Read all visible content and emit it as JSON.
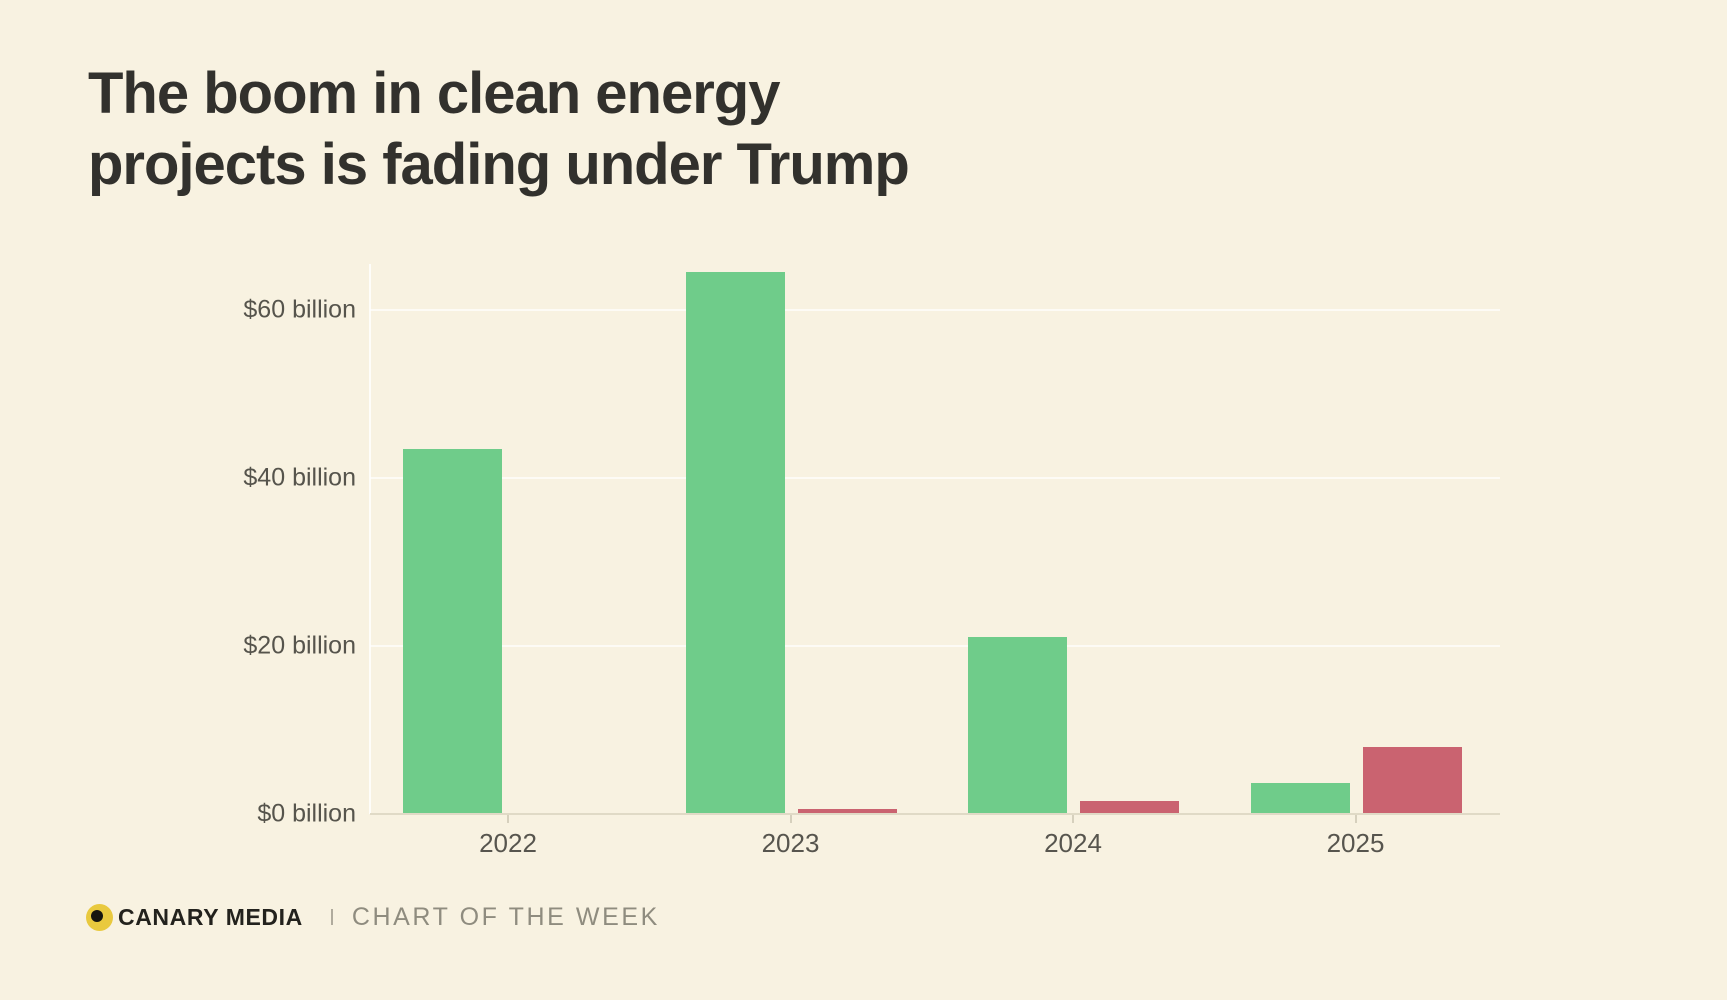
{
  "title": {
    "line1": "The boom in clean energy",
    "line2": "projects is fading under Trump"
  },
  "footer": {
    "brand": "CANARY MEDIA",
    "series_label": "CHART OF THE WEEK"
  },
  "colors": {
    "background": "#f8f2e1",
    "green_bar": "#6fcc8a",
    "red_bar": "#ca6370",
    "logo_yellow": "#e9c93e",
    "logo_dot": "#16150f"
  },
  "chart_data": {
    "type": "bar",
    "title": "The boom in clean energy projects is fading under Trump",
    "categories": [
      "2022",
      "2023",
      "2024",
      "2025"
    ],
    "series": [
      {
        "name": "green",
        "color": "#6fcc8a",
        "values": [
          43.5,
          64.5,
          21.1,
          3.7
        ]
      },
      {
        "name": "red",
        "color": "#ca6370",
        "values": [
          0,
          0.6,
          1.5,
          8.0
        ]
      }
    ],
    "unit": "$ billion",
    "ytick_labels": [
      "$0 billion",
      "$20 billion",
      "$40 billion",
      "$60 billion"
    ],
    "ytick_values": [
      0,
      20,
      40,
      60
    ],
    "ylim": [
      0,
      67
    ],
    "grid": "horizontal",
    "legend": "none"
  }
}
